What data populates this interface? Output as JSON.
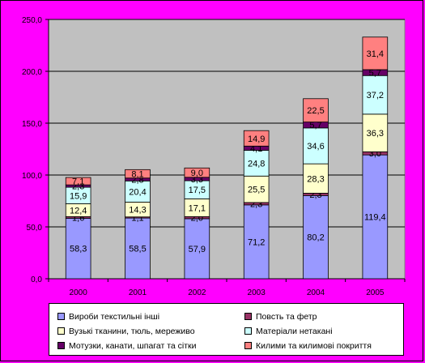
{
  "chart_data": {
    "type": "bar",
    "stacked": true,
    "categories": [
      "2000",
      "2001",
      "2002",
      "2003",
      "2004",
      "2005"
    ],
    "y_ticks": [
      "0,0",
      "50,0",
      "100,0",
      "150,0",
      "200,0",
      "250,0"
    ],
    "ylim": [
      0,
      250
    ],
    "grid": true,
    "legend_position": "bottom",
    "series": [
      {
        "name": "Вироби текстильні інші",
        "color": "#9999ff",
        "values": [
          58.3,
          58.5,
          57.9,
          71.2,
          80.2,
          119.4
        ],
        "labels": [
          "58,3",
          "58,5",
          "57,9",
          "71,2",
          "80,2",
          "119,4"
        ]
      },
      {
        "name": "Повсть та фетр",
        "color": "#993366",
        "values": [
          1.6,
          1.1,
          2.0,
          2.3,
          2.3,
          3.0
        ],
        "labels": [
          "1,6",
          "1,1",
          "2,0",
          "2,3",
          "2,3",
          "3,0"
        ]
      },
      {
        "name": "Вузькі тканини, тюль, мереживо",
        "color": "#ffffcc",
        "values": [
          12.4,
          14.3,
          17.1,
          25.5,
          28.3,
          36.3
        ],
        "labels": [
          "12,4",
          "14,3",
          "17,1",
          "25,5",
          "28,3",
          "36,3"
        ]
      },
      {
        "name": "Матеріали нетакані",
        "color": "#ccffff",
        "values": [
          15.9,
          20.4,
          17.5,
          24.8,
          34.6,
          37.2
        ],
        "labels": [
          "15,9",
          "20,4",
          "17,5",
          "24,8",
          "34,6",
          "37,2"
        ]
      },
      {
        "name": "Мотузки, канати, шпагат та сітки",
        "color": "#660066",
        "values": [
          2.3,
          2.8,
          3.3,
          4.1,
          5.7,
          5.7
        ],
        "labels": [
          "2,3",
          "2,8",
          "3,3",
          "4,1",
          "5,7",
          "5,7"
        ]
      },
      {
        "name": "Килими та килимові покриття",
        "color": "#ff8080",
        "values": [
          7.1,
          8.1,
          9.0,
          14.9,
          22.5,
          31.4
        ],
        "labels": [
          "7,1",
          "8,1",
          "9,0",
          "14,9",
          "22,5",
          "31,4"
        ]
      }
    ]
  }
}
